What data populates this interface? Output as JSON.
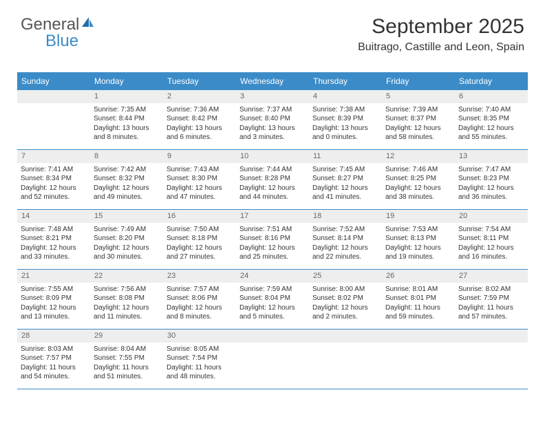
{
  "brand": {
    "part1": "General",
    "part2": "Blue"
  },
  "title": "September 2025",
  "location": "Buitrago, Castille and Leon, Spain",
  "colors": {
    "header_bg": "#3b8bc8",
    "header_text": "#ffffff",
    "daynum_bg": "#eeeeee",
    "daynum_text": "#666666",
    "body_text": "#333333",
    "rule": "#3b8bc8",
    "page_bg": "#ffffff"
  },
  "day_names": [
    "Sunday",
    "Monday",
    "Tuesday",
    "Wednesday",
    "Thursday",
    "Friday",
    "Saturday"
  ],
  "weeks": [
    [
      {
        "day": "",
        "sunrise": "",
        "sunset": "",
        "daylight": ""
      },
      {
        "day": "1",
        "sunrise": "Sunrise: 7:35 AM",
        "sunset": "Sunset: 8:44 PM",
        "daylight": "Daylight: 13 hours and 8 minutes."
      },
      {
        "day": "2",
        "sunrise": "Sunrise: 7:36 AM",
        "sunset": "Sunset: 8:42 PM",
        "daylight": "Daylight: 13 hours and 6 minutes."
      },
      {
        "day": "3",
        "sunrise": "Sunrise: 7:37 AM",
        "sunset": "Sunset: 8:40 PM",
        "daylight": "Daylight: 13 hours and 3 minutes."
      },
      {
        "day": "4",
        "sunrise": "Sunrise: 7:38 AM",
        "sunset": "Sunset: 8:39 PM",
        "daylight": "Daylight: 13 hours and 0 minutes."
      },
      {
        "day": "5",
        "sunrise": "Sunrise: 7:39 AM",
        "sunset": "Sunset: 8:37 PM",
        "daylight": "Daylight: 12 hours and 58 minutes."
      },
      {
        "day": "6",
        "sunrise": "Sunrise: 7:40 AM",
        "sunset": "Sunset: 8:35 PM",
        "daylight": "Daylight: 12 hours and 55 minutes."
      }
    ],
    [
      {
        "day": "7",
        "sunrise": "Sunrise: 7:41 AM",
        "sunset": "Sunset: 8:34 PM",
        "daylight": "Daylight: 12 hours and 52 minutes."
      },
      {
        "day": "8",
        "sunrise": "Sunrise: 7:42 AM",
        "sunset": "Sunset: 8:32 PM",
        "daylight": "Daylight: 12 hours and 49 minutes."
      },
      {
        "day": "9",
        "sunrise": "Sunrise: 7:43 AM",
        "sunset": "Sunset: 8:30 PM",
        "daylight": "Daylight: 12 hours and 47 minutes."
      },
      {
        "day": "10",
        "sunrise": "Sunrise: 7:44 AM",
        "sunset": "Sunset: 8:28 PM",
        "daylight": "Daylight: 12 hours and 44 minutes."
      },
      {
        "day": "11",
        "sunrise": "Sunrise: 7:45 AM",
        "sunset": "Sunset: 8:27 PM",
        "daylight": "Daylight: 12 hours and 41 minutes."
      },
      {
        "day": "12",
        "sunrise": "Sunrise: 7:46 AM",
        "sunset": "Sunset: 8:25 PM",
        "daylight": "Daylight: 12 hours and 38 minutes."
      },
      {
        "day": "13",
        "sunrise": "Sunrise: 7:47 AM",
        "sunset": "Sunset: 8:23 PM",
        "daylight": "Daylight: 12 hours and 36 minutes."
      }
    ],
    [
      {
        "day": "14",
        "sunrise": "Sunrise: 7:48 AM",
        "sunset": "Sunset: 8:21 PM",
        "daylight": "Daylight: 12 hours and 33 minutes."
      },
      {
        "day": "15",
        "sunrise": "Sunrise: 7:49 AM",
        "sunset": "Sunset: 8:20 PM",
        "daylight": "Daylight: 12 hours and 30 minutes."
      },
      {
        "day": "16",
        "sunrise": "Sunrise: 7:50 AM",
        "sunset": "Sunset: 8:18 PM",
        "daylight": "Daylight: 12 hours and 27 minutes."
      },
      {
        "day": "17",
        "sunrise": "Sunrise: 7:51 AM",
        "sunset": "Sunset: 8:16 PM",
        "daylight": "Daylight: 12 hours and 25 minutes."
      },
      {
        "day": "18",
        "sunrise": "Sunrise: 7:52 AM",
        "sunset": "Sunset: 8:14 PM",
        "daylight": "Daylight: 12 hours and 22 minutes."
      },
      {
        "day": "19",
        "sunrise": "Sunrise: 7:53 AM",
        "sunset": "Sunset: 8:13 PM",
        "daylight": "Daylight: 12 hours and 19 minutes."
      },
      {
        "day": "20",
        "sunrise": "Sunrise: 7:54 AM",
        "sunset": "Sunset: 8:11 PM",
        "daylight": "Daylight: 12 hours and 16 minutes."
      }
    ],
    [
      {
        "day": "21",
        "sunrise": "Sunrise: 7:55 AM",
        "sunset": "Sunset: 8:09 PM",
        "daylight": "Daylight: 12 hours and 13 minutes."
      },
      {
        "day": "22",
        "sunrise": "Sunrise: 7:56 AM",
        "sunset": "Sunset: 8:08 PM",
        "daylight": "Daylight: 12 hours and 11 minutes."
      },
      {
        "day": "23",
        "sunrise": "Sunrise: 7:57 AM",
        "sunset": "Sunset: 8:06 PM",
        "daylight": "Daylight: 12 hours and 8 minutes."
      },
      {
        "day": "24",
        "sunrise": "Sunrise: 7:59 AM",
        "sunset": "Sunset: 8:04 PM",
        "daylight": "Daylight: 12 hours and 5 minutes."
      },
      {
        "day": "25",
        "sunrise": "Sunrise: 8:00 AM",
        "sunset": "Sunset: 8:02 PM",
        "daylight": "Daylight: 12 hours and 2 minutes."
      },
      {
        "day": "26",
        "sunrise": "Sunrise: 8:01 AM",
        "sunset": "Sunset: 8:01 PM",
        "daylight": "Daylight: 11 hours and 59 minutes."
      },
      {
        "day": "27",
        "sunrise": "Sunrise: 8:02 AM",
        "sunset": "Sunset: 7:59 PM",
        "daylight": "Daylight: 11 hours and 57 minutes."
      }
    ],
    [
      {
        "day": "28",
        "sunrise": "Sunrise: 8:03 AM",
        "sunset": "Sunset: 7:57 PM",
        "daylight": "Daylight: 11 hours and 54 minutes."
      },
      {
        "day": "29",
        "sunrise": "Sunrise: 8:04 AM",
        "sunset": "Sunset: 7:55 PM",
        "daylight": "Daylight: 11 hours and 51 minutes."
      },
      {
        "day": "30",
        "sunrise": "Sunrise: 8:05 AM",
        "sunset": "Sunset: 7:54 PM",
        "daylight": "Daylight: 11 hours and 48 minutes."
      },
      {
        "day": "",
        "sunrise": "",
        "sunset": "",
        "daylight": ""
      },
      {
        "day": "",
        "sunrise": "",
        "sunset": "",
        "daylight": ""
      },
      {
        "day": "",
        "sunrise": "",
        "sunset": "",
        "daylight": ""
      },
      {
        "day": "",
        "sunrise": "",
        "sunset": "",
        "daylight": ""
      }
    ]
  ]
}
